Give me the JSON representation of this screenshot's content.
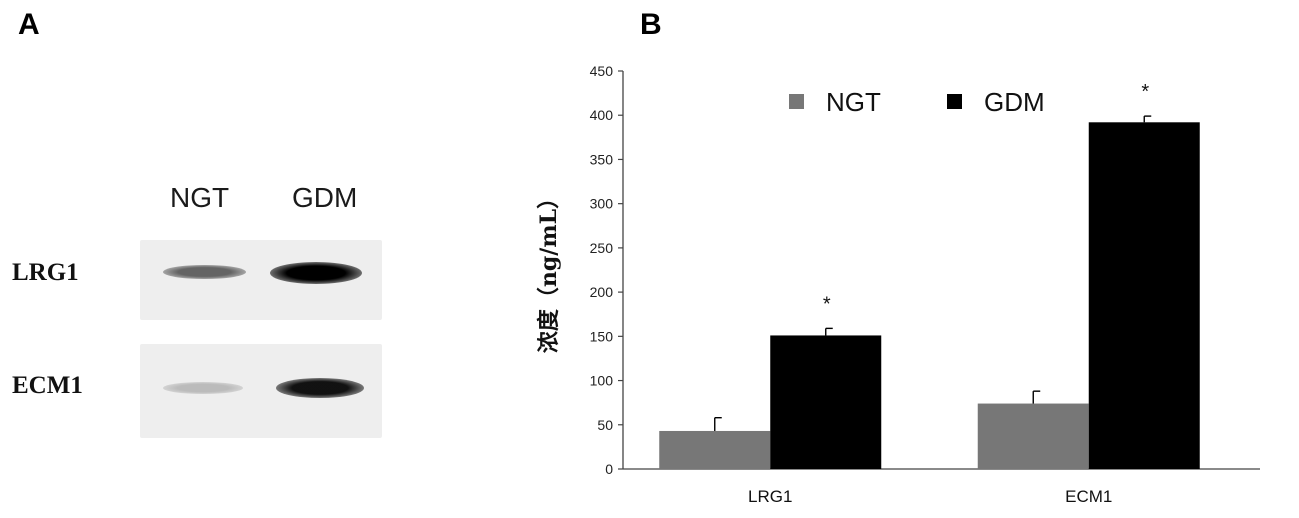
{
  "panel_a": {
    "letter": "A",
    "columns": [
      "NGT",
      "GDM"
    ],
    "rows": [
      {
        "label": "LRG1",
        "bands": [
          {
            "intensity": 0.55,
            "color": "#2b2b2b"
          },
          {
            "intensity": 1.0,
            "color": "#000000"
          }
        ]
      },
      {
        "label": "ECM1",
        "bands": [
          {
            "intensity": 0.25,
            "color": "#8a8a8a"
          },
          {
            "intensity": 0.95,
            "color": "#0a0a0a"
          }
        ]
      }
    ]
  },
  "panel_b": {
    "letter": "B"
  },
  "chart_data": {
    "type": "bar",
    "categories": [
      "LRG1",
      "ECM1"
    ],
    "series": [
      {
        "name": "NGT",
        "values": [
          43,
          74
        ],
        "errors": [
          15,
          14
        ],
        "color": "#777777"
      },
      {
        "name": "GDM",
        "values": [
          151,
          392
        ],
        "errors": [
          8,
          7
        ],
        "color": "#000000"
      }
    ],
    "significance": [
      {
        "category": "LRG1",
        "series": "GDM",
        "text": "*"
      },
      {
        "category": "ECM1",
        "series": "GDM",
        "text": "*"
      }
    ],
    "ylabel": "浓度（ng/mL）",
    "xlabel": "",
    "ylim": [
      0,
      450
    ],
    "yticks": [
      0,
      50,
      100,
      150,
      200,
      250,
      300,
      350,
      400,
      450
    ],
    "legend_position": "top-center",
    "grid": false
  }
}
